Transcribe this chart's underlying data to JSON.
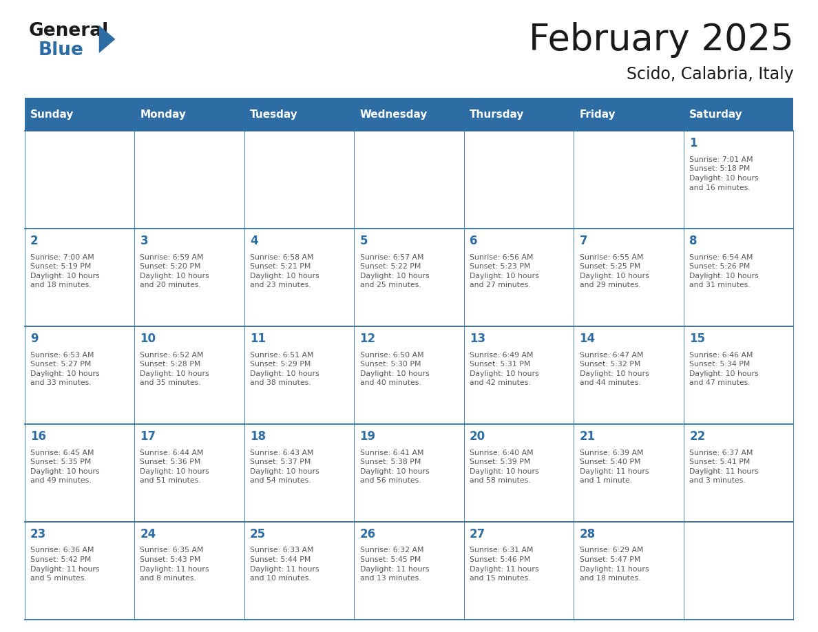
{
  "title": "February 2025",
  "subtitle": "Scido, Calabria, Italy",
  "header_bg": "#2E6DA4",
  "header_text_color": "#FFFFFF",
  "cell_border_color": "#2E6DA4",
  "day_number_color": "#2E6DA4",
  "info_text_color": "#555555",
  "background_color": "#FFFFFF",
  "days_of_week": [
    "Sunday",
    "Monday",
    "Tuesday",
    "Wednesday",
    "Thursday",
    "Friday",
    "Saturday"
  ],
  "weeks": [
    [
      {
        "day": "",
        "info": ""
      },
      {
        "day": "",
        "info": ""
      },
      {
        "day": "",
        "info": ""
      },
      {
        "day": "",
        "info": ""
      },
      {
        "day": "",
        "info": ""
      },
      {
        "day": "",
        "info": ""
      },
      {
        "day": "1",
        "info": "Sunrise: 7:01 AM\nSunset: 5:18 PM\nDaylight: 10 hours\nand 16 minutes."
      }
    ],
    [
      {
        "day": "2",
        "info": "Sunrise: 7:00 AM\nSunset: 5:19 PM\nDaylight: 10 hours\nand 18 minutes."
      },
      {
        "day": "3",
        "info": "Sunrise: 6:59 AM\nSunset: 5:20 PM\nDaylight: 10 hours\nand 20 minutes."
      },
      {
        "day": "4",
        "info": "Sunrise: 6:58 AM\nSunset: 5:21 PM\nDaylight: 10 hours\nand 23 minutes."
      },
      {
        "day": "5",
        "info": "Sunrise: 6:57 AM\nSunset: 5:22 PM\nDaylight: 10 hours\nand 25 minutes."
      },
      {
        "day": "6",
        "info": "Sunrise: 6:56 AM\nSunset: 5:23 PM\nDaylight: 10 hours\nand 27 minutes."
      },
      {
        "day": "7",
        "info": "Sunrise: 6:55 AM\nSunset: 5:25 PM\nDaylight: 10 hours\nand 29 minutes."
      },
      {
        "day": "8",
        "info": "Sunrise: 6:54 AM\nSunset: 5:26 PM\nDaylight: 10 hours\nand 31 minutes."
      }
    ],
    [
      {
        "day": "9",
        "info": "Sunrise: 6:53 AM\nSunset: 5:27 PM\nDaylight: 10 hours\nand 33 minutes."
      },
      {
        "day": "10",
        "info": "Sunrise: 6:52 AM\nSunset: 5:28 PM\nDaylight: 10 hours\nand 35 minutes."
      },
      {
        "day": "11",
        "info": "Sunrise: 6:51 AM\nSunset: 5:29 PM\nDaylight: 10 hours\nand 38 minutes."
      },
      {
        "day": "12",
        "info": "Sunrise: 6:50 AM\nSunset: 5:30 PM\nDaylight: 10 hours\nand 40 minutes."
      },
      {
        "day": "13",
        "info": "Sunrise: 6:49 AM\nSunset: 5:31 PM\nDaylight: 10 hours\nand 42 minutes."
      },
      {
        "day": "14",
        "info": "Sunrise: 6:47 AM\nSunset: 5:32 PM\nDaylight: 10 hours\nand 44 minutes."
      },
      {
        "day": "15",
        "info": "Sunrise: 6:46 AM\nSunset: 5:34 PM\nDaylight: 10 hours\nand 47 minutes."
      }
    ],
    [
      {
        "day": "16",
        "info": "Sunrise: 6:45 AM\nSunset: 5:35 PM\nDaylight: 10 hours\nand 49 minutes."
      },
      {
        "day": "17",
        "info": "Sunrise: 6:44 AM\nSunset: 5:36 PM\nDaylight: 10 hours\nand 51 minutes."
      },
      {
        "day": "18",
        "info": "Sunrise: 6:43 AM\nSunset: 5:37 PM\nDaylight: 10 hours\nand 54 minutes."
      },
      {
        "day": "19",
        "info": "Sunrise: 6:41 AM\nSunset: 5:38 PM\nDaylight: 10 hours\nand 56 minutes."
      },
      {
        "day": "20",
        "info": "Sunrise: 6:40 AM\nSunset: 5:39 PM\nDaylight: 10 hours\nand 58 minutes."
      },
      {
        "day": "21",
        "info": "Sunrise: 6:39 AM\nSunset: 5:40 PM\nDaylight: 11 hours\nand 1 minute."
      },
      {
        "day": "22",
        "info": "Sunrise: 6:37 AM\nSunset: 5:41 PM\nDaylight: 11 hours\nand 3 minutes."
      }
    ],
    [
      {
        "day": "23",
        "info": "Sunrise: 6:36 AM\nSunset: 5:42 PM\nDaylight: 11 hours\nand 5 minutes."
      },
      {
        "day": "24",
        "info": "Sunrise: 6:35 AM\nSunset: 5:43 PM\nDaylight: 11 hours\nand 8 minutes."
      },
      {
        "day": "25",
        "info": "Sunrise: 6:33 AM\nSunset: 5:44 PM\nDaylight: 11 hours\nand 10 minutes."
      },
      {
        "day": "26",
        "info": "Sunrise: 6:32 AM\nSunset: 5:45 PM\nDaylight: 11 hours\nand 13 minutes."
      },
      {
        "day": "27",
        "info": "Sunrise: 6:31 AM\nSunset: 5:46 PM\nDaylight: 11 hours\nand 15 minutes."
      },
      {
        "day": "28",
        "info": "Sunrise: 6:29 AM\nSunset: 5:47 PM\nDaylight: 11 hours\nand 18 minutes."
      },
      {
        "day": "",
        "info": ""
      }
    ]
  ],
  "logo_general_color": "#1A1A1A",
  "logo_blue_color": "#2E6DA4"
}
